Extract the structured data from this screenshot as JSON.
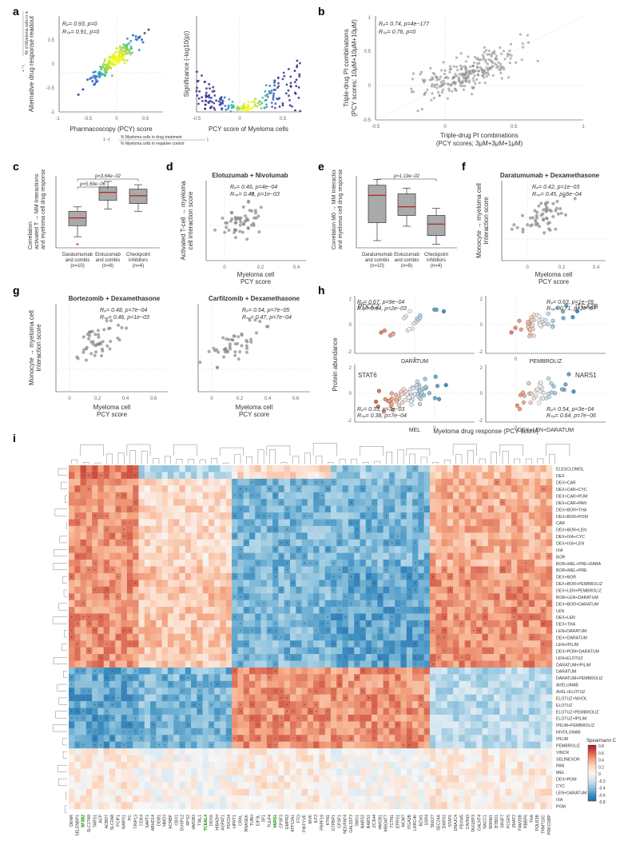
{
  "labels": {
    "a": "a",
    "b": "b",
    "c": "c",
    "d": "d",
    "e": "e",
    "f": "f",
    "g": "g",
    "h": "h",
    "i": "i"
  },
  "panel_a": {
    "left": {
      "xlabel": "Pharmacoscopy (PCY) score",
      "ylabel": "Alternative drug response readout",
      "xsub1": "% Myeloma cells in drug treatment",
      "xsub2": "% Myeloma cells in negative control",
      "ysub1": "Nr of Myeloma cells in drug treatment",
      "ysub2": "Nr of Myeloma cells in negative control",
      "stat1": "Rₚ= 0.93, p=0",
      "stat2": "Rₛₚ= 0.91, p=0",
      "xlim": [
        -1,
        0.8
      ],
      "ylim": [
        -1,
        0.7
      ],
      "n": 180
    },
    "right": {
      "xlabel": "PCY score of Myeloma cells",
      "ylabel": "Significance (-log10(p))",
      "xlim": [
        -0.5,
        0.7
      ],
      "ylim": [
        0,
        10
      ],
      "n": 200
    },
    "gradient": [
      "#352a87",
      "#2f6fd0",
      "#33b7a0",
      "#a0d840",
      "#f9fb0e"
    ]
  },
  "panel_b": {
    "xlabel": "Triple-drug PI combinations\n(PCY scores; 3μM+3μM+1μM)",
    "ylabel": "Triple-drug PI combinations\n(PCY scores; 10μM+10μM+10μM)",
    "stat1": "Rₚ= 0.74, p=4e−177",
    "stat2": "Rₛₚ= 0.76, p=0",
    "xlim": [
      -0.5,
      1
    ],
    "ylim": [
      -0.5,
      1
    ],
    "n": 260
  },
  "box_common": {
    "groups": [
      "Daratumumab\nand combis\n(n=10)",
      "Elotuzumab\nand combis\n(n=8)",
      "Checkpoint\ninhibitors\n(n=4)"
    ]
  },
  "panel_c": {
    "ylabel": "Correlation:\nactivated T → MM Interactions\nand myeloma cell drug response",
    "p1": "p=5.69e−06",
    "p2": "p=3.64e−02",
    "boxes": [
      {
        "q1": -0.05,
        "med": 0.02,
        "q3": 0.08,
        "lw": -0.15,
        "uw": 0.12,
        "out": [
          -0.22
        ]
      },
      {
        "q1": 0.18,
        "med": 0.25,
        "q3": 0.3,
        "lw": 0.1,
        "uw": 0.35
      },
      {
        "q1": 0.15,
        "med": 0.22,
        "q3": 0.28,
        "lw": 0.08,
        "uw": 0.32
      }
    ],
    "ylim": [
      -0.25,
      0.4
    ]
  },
  "panel_d": {
    "title": "Elotuzumab + Nivolumab",
    "ylabel": "Activated T-cell → myeloma\ncell interaction score",
    "xlabel": "Myeloma cell\nPCY score",
    "stat1": "Rₚ= 0.46, p=4e−04",
    "stat2": "Rₛₚ= 0.43, p=1e−03",
    "xlim": [
      -0.1,
      0.45
    ],
    "ylim": [
      -0.4,
      0.5
    ],
    "n": 55
  },
  "panel_e": {
    "ylabel": "Correlation M0 → MM Interactions\nand myeloma cell drug response",
    "p1": "p=1.19e−02",
    "boxes": [
      {
        "q1": -0.1,
        "med": 0.28,
        "q3": 0.42,
        "lw": -0.35,
        "uw": 0.5
      },
      {
        "q1": 0.0,
        "med": 0.12,
        "q3": 0.3,
        "lw": -0.15,
        "uw": 0.38
      },
      {
        "q1": -0.28,
        "med": -0.12,
        "q3": 0.0,
        "lw": -0.4,
        "uw": 0.1
      }
    ],
    "ylim": [
      -0.45,
      0.55
    ]
  },
  "panel_f": {
    "title": "Daratumumab + Dexamethasone",
    "ylabel": "Monocyte → myeloma cell\nInteraction score",
    "xlabel": "Myeloma cell\nPCY score",
    "stat1": "Rₚ= 0.42, p=1e−03",
    "stat2": "Rₛₚ= 0.45, p=6e−04",
    "xlim": [
      -0.15,
      0.45
    ],
    "ylim": [
      -0.6,
      1.6
    ],
    "n": 55
  },
  "panel_g": {
    "left": {
      "title": "Bortezomib + Dexamethasone",
      "stat1": "Rₚ= 0.48, p=7e−04",
      "stat2": "Rₛₚ= 0.46, p=1e−03",
      "xlim": [
        -0.1,
        0.7
      ],
      "ylim": [
        -0.5,
        1.5
      ],
      "n": 48
    },
    "right": {
      "title": "Carfilzomib + Dexamethasone",
      "stat1": "Rₚ= 0.54, p=7e−05",
      "stat2": "Rₛₚ= 0.47, p=7e−04",
      "xlim": [
        -0.1,
        0.7
      ],
      "ylim": [
        -0.5,
        1.5
      ],
      "n": 48
    },
    "ylabel": "Monocyte → myeloma cell\nInteraction score",
    "xlabel": "Myeloma cell\nPCY score"
  },
  "panel_h": {
    "xlabel": "Myeloma drug response (PCY score)",
    "ylabel": "Protein abundance",
    "sub": [
      {
        "pr": "PDCC2",
        "drug": "DARATUM",
        "stat1": "Rₚ= 0.67, p=9e−04",
        "stat2": "Rₛₚ= 0.64, p=2e−03",
        "xlim": [
          -0.2,
          0.2
        ],
        "ylim": [
          -2,
          2
        ],
        "n": 20
      },
      {
        "pr": "ITGA2B",
        "drug": "PEMBROLIZ",
        "stat1": "Rₚ= 0.63, p=1e−05",
        "stat2": "Rₛₚ= 0.71, p=2e−07",
        "xlim": [
          -0.2,
          0.6
        ],
        "ylim": [
          -2,
          2
        ],
        "n": 42
      },
      {
        "pr": "STAT6",
        "drug": "MEL",
        "stat1": "Rₚ= 0.33, p=3e−03",
        "stat2": "Rₛₚ= 0.38, p=7e−04",
        "xlim": [
          -0.4,
          0.2
        ],
        "ylim": [
          -2,
          2
        ],
        "n": 72
      },
      {
        "pr": "NARS1",
        "drug": "DEX+LEN+DARATUM",
        "stat1": "Rₚ= 0.54, p=3e−04",
        "stat2": "Rₛₚ= 0.64, p=7e−06",
        "xlim": [
          -0.2,
          0.6
        ],
        "ylim": [
          -2,
          2
        ],
        "n": 38
      }
    ],
    "gradient": [
      "#b2182b",
      "#d6604d",
      "#f4a582",
      "#f7f7f7",
      "#92c5de",
      "#4393c3",
      "#2166ac"
    ]
  },
  "panel_i": {
    "cbar_title": "Spearmann Corr",
    "cbar_ticks": [
      "0.8",
      "0.6",
      "0.4",
      "0.2",
      "0",
      "-0.2",
      "-0.4",
      "-0.6",
      "-0.8"
    ],
    "gradient": [
      "#b2182b",
      "#d6604d",
      "#f4a582",
      "#fddbc7",
      "#f7f7f7",
      "#d1e5f0",
      "#92c5de",
      "#4393c3",
      "#2166ac"
    ],
    "rows": [
      "ELESCLOMOL",
      "DEX",
      "DEX+CAR",
      "DEX+CAR+CYC",
      "DEX+CAR+POM",
      "DEX+CAR+PAN",
      "DEX+BOR+THA",
      "DEX+BOR+POM",
      "CAR",
      "DEX+BOR+LEN",
      "DEX+IXA+CYC",
      "DEX+IXA+LEN",
      "IXA",
      "BOR",
      "BOR+MEL+PRE+DARA",
      "BOR+MEL+PRE",
      "DEX+BOR",
      "DEX+BOR+PEMBROLIZ",
      "DEX+LEN+PEMBROLIZ",
      "BOR+LEN+DARATUM",
      "DEX+BOR+DARATUM",
      "LEN",
      "DEX+LEN",
      "DEX+THA",
      "LEN+DARATUM",
      "DEX+DARATUM",
      "LEN+IPILIM",
      "DEX+POM+DARATUM",
      "LEN+ELOTUZ",
      "DARATUM+IPILIM",
      "DARATUM",
      "DARATUM+PEMBROLIZ",
      "AVELUMAB",
      "AVEL+ELOTUZ",
      "ELOTUZ+NIVOL",
      "ELOTUZ",
      "ELOTUZ+PEMBROLIZ",
      "ELOTUZ+IPILIM",
      "IPILIM+PEMBROLIZ",
      "NIVOLUMAB",
      "IPILIM",
      "PEMBROLIZ",
      "VINCR",
      "SELINEXOR",
      "PAN",
      "MEL",
      "DEX+POM",
      "CYC",
      "LEN+DARATUM",
      "IXA",
      "POM"
    ],
    "cols": [
      "DENR",
      "SELENBP1",
      "SF3B2",
      "SLC17A9",
      "TARS1",
      "ACP",
      "ACBD7",
      "SLC2A8",
      "PCIF1",
      "WARS1",
      "PC",
      "TRIP13",
      "CDK4",
      "SART1",
      "ABHD14",
      "DDB1",
      "NMD3",
      "ACRBP",
      "CBX1",
      "DUSP12",
      "RPS2",
      "HMGB3",
      "TIAL1",
      "TCEAL4",
      "DDX6",
      "HIBADH",
      "AGPAT1",
      "PDCD4",
      "HPRT1",
      "CRKL",
      "RNASEK",
      "TUBH",
      "EIF3L",
      "SF1",
      "TULP4",
      "VARS1",
      "CPSF3",
      "GMPR2",
      "ATP13A1",
      "FTO",
      "PIKFYVE",
      "MVK",
      "ILF2",
      "PRPF19",
      "KTN1",
      "GTPBP1",
      "CPSF1",
      "NDUFAF4",
      "GAL3ST3",
      "SMG1",
      "NARS2",
      "RARS1",
      "ZC3H4",
      "HMGB1",
      "MBOAT7",
      "TCTN1",
      "EPRS1",
      "MCM7",
      "ITGA2B",
      "LRRC40",
      "BZW1",
      "SSR4",
      "SNX27",
      "SEC24A",
      "DARS2",
      "STAT6",
      "DNAJC4",
      "FBXW5",
      "CAVIN3",
      "TAX1BP3",
      "GALNT4",
      "NACC1",
      "SRRM1",
      "BTBD1",
      "SRSF7",
      "PCGF5",
      "ZMAT2",
      "FAM20B",
      "RBBP6",
      "THA",
      "POLR3B",
      "TRMT10C",
      "PRKCDBP"
    ],
    "cols_green": [
      "SF3B2",
      "TCEAL4",
      "VARS1"
    ],
    "nrows": 51,
    "ncols": 83
  }
}
